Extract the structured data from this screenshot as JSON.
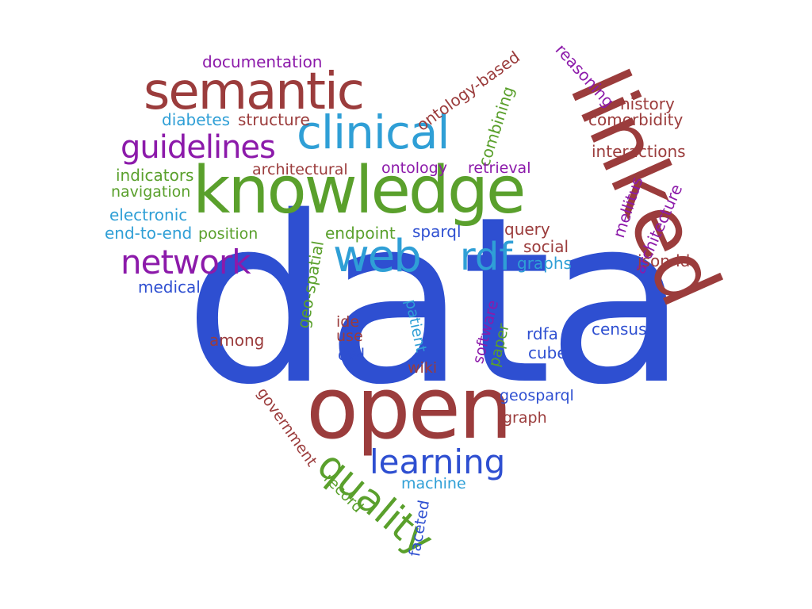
{
  "palette": {
    "red": "#9b3c3c",
    "green": "#5aa02c",
    "blue": "#2e4fd1",
    "purple": "#8c1aaa",
    "cyan": "#2f9fd6"
  },
  "words": [
    {
      "text": "data",
      "color": "blue"
    },
    {
      "text": "linked",
      "color": "red"
    },
    {
      "text": "knowledge",
      "color": "green"
    },
    {
      "text": "open",
      "color": "red"
    },
    {
      "text": "semantic",
      "color": "red"
    },
    {
      "text": "clinical",
      "color": "cyan"
    },
    {
      "text": "web",
      "color": "cyan"
    },
    {
      "text": "network",
      "color": "purple"
    },
    {
      "text": "guidelines",
      "color": "purple"
    },
    {
      "text": "rdf",
      "color": "cyan"
    },
    {
      "text": "quality",
      "color": "green"
    },
    {
      "text": "learning",
      "color": "blue"
    },
    {
      "text": "documentation",
      "color": "purple"
    },
    {
      "text": "diabetes",
      "color": "cyan"
    },
    {
      "text": "structure",
      "color": "red"
    },
    {
      "text": "ontology-based",
      "color": "red"
    },
    {
      "text": "combining",
      "color": "green"
    },
    {
      "text": "reasoning",
      "color": "purple"
    },
    {
      "text": "history",
      "color": "red"
    },
    {
      "text": "comorbidity",
      "color": "red"
    },
    {
      "text": "interactions",
      "color": "red"
    },
    {
      "text": "architectural",
      "color": "red"
    },
    {
      "text": "ontology",
      "color": "purple"
    },
    {
      "text": "retrieval",
      "color": "purple"
    },
    {
      "text": "indicators",
      "color": "green"
    },
    {
      "text": "navigation",
      "color": "green"
    },
    {
      "text": "electronic",
      "color": "cyan"
    },
    {
      "text": "end-to-end",
      "color": "cyan"
    },
    {
      "text": "position",
      "color": "green"
    },
    {
      "text": "endpoint",
      "color": "green"
    },
    {
      "text": "sparql",
      "color": "blue"
    },
    {
      "text": "query",
      "color": "red"
    },
    {
      "text": "social",
      "color": "red"
    },
    {
      "text": "graphs",
      "color": "cyan"
    },
    {
      "text": "mellitus",
      "color": "purple"
    },
    {
      "text": "architecture",
      "color": "purple"
    },
    {
      "text": "json-ld",
      "color": "red"
    },
    {
      "text": "medical",
      "color": "blue"
    },
    {
      "text": "geo-spatial",
      "color": "green"
    },
    {
      "text": "patient",
      "color": "cyan"
    },
    {
      "text": "software",
      "color": "purple"
    },
    {
      "text": "paper",
      "color": "green"
    },
    {
      "text": "ide",
      "color": "red"
    },
    {
      "text": "use",
      "color": "red"
    },
    {
      "text": "owl",
      "color": "blue"
    },
    {
      "text": "among",
      "color": "red"
    },
    {
      "text": "wiki",
      "color": "red"
    },
    {
      "text": "rdfa",
      "color": "blue"
    },
    {
      "text": "cube",
      "color": "blue"
    },
    {
      "text": "census",
      "color": "blue"
    },
    {
      "text": "geosparql",
      "color": "blue"
    },
    {
      "text": "graph",
      "color": "red"
    },
    {
      "text": "government",
      "color": "red"
    },
    {
      "text": "record",
      "color": "green"
    },
    {
      "text": "machine",
      "color": "cyan"
    },
    {
      "text": "faceted",
      "color": "blue"
    }
  ]
}
